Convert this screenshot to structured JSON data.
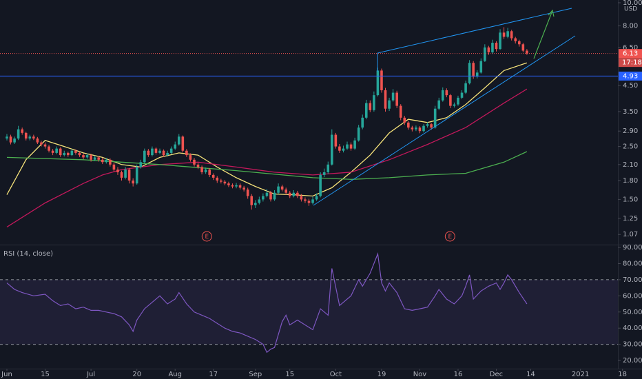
{
  "chart_data": [
    {
      "type": "candlestick",
      "log_scale": true,
      "currency": "USD",
      "up_color": "#26a69a",
      "down_color": "#ef5350",
      "xlim": [
        -1.8,
        159.8
      ],
      "ylim": [
        0.97,
        10.27
      ],
      "yticks": [
        {
          "value": 1.07,
          "label": "1.07"
        },
        {
          "value": 1.25,
          "label": "1.25"
        },
        {
          "value": 1.5,
          "label": "1.50"
        },
        {
          "value": 1.8,
          "label": "1.80"
        },
        {
          "value": 2.1,
          "label": "2.10"
        },
        {
          "value": 2.5,
          "label": "2.50"
        },
        {
          "value": 2.9,
          "label": "2.90"
        },
        {
          "value": 3.5,
          "label": "3.50"
        },
        {
          "value": 4.5,
          "label": "4.50"
        },
        {
          "value": 6.5,
          "label": "6.50"
        },
        {
          "value": 8,
          "label": "8.00"
        },
        {
          "value": 10,
          "label": "10.00"
        }
      ],
      "candles": [
        [
          2.7,
          2.82,
          2.65,
          2.75
        ],
        [
          2.75,
          2.8,
          2.55,
          2.6
        ],
        [
          2.6,
          2.75,
          2.56,
          2.7
        ],
        [
          2.7,
          3.05,
          2.66,
          2.95
        ],
        [
          2.95,
          3.0,
          2.8,
          2.85
        ],
        [
          2.85,
          2.88,
          2.65,
          2.7
        ],
        [
          2.7,
          2.8,
          2.65,
          2.75
        ],
        [
          2.75,
          2.8,
          2.66,
          2.7
        ],
        [
          2.7,
          2.74,
          2.56,
          2.6
        ],
        [
          2.6,
          2.64,
          2.5,
          2.55
        ],
        [
          2.55,
          2.6,
          2.45,
          2.5
        ],
        [
          2.5,
          2.54,
          2.36,
          2.4
        ],
        [
          2.4,
          2.44,
          2.3,
          2.35
        ],
        [
          2.35,
          2.5,
          2.32,
          2.45
        ],
        [
          2.45,
          2.48,
          2.26,
          2.3
        ],
        [
          2.3,
          2.4,
          2.27,
          2.35
        ],
        [
          2.35,
          2.38,
          2.26,
          2.3
        ],
        [
          2.3,
          2.44,
          2.28,
          2.4
        ],
        [
          2.4,
          2.43,
          2.31,
          2.35
        ],
        [
          2.35,
          2.38,
          2.26,
          2.3
        ],
        [
          2.3,
          2.34,
          2.21,
          2.25
        ],
        [
          2.25,
          2.34,
          2.22,
          2.3
        ],
        [
          2.3,
          2.33,
          2.16,
          2.2
        ],
        [
          2.2,
          2.29,
          2.17,
          2.25
        ],
        [
          2.25,
          2.28,
          2.16,
          2.2
        ],
        [
          2.2,
          2.24,
          2.11,
          2.15
        ],
        [
          2.15,
          2.24,
          2.12,
          2.2
        ],
        [
          2.2,
          2.23,
          2.06,
          2.1
        ],
        [
          2.1,
          2.14,
          1.96,
          2.0
        ],
        [
          2.0,
          2.05,
          1.9,
          1.95
        ],
        [
          1.95,
          1.98,
          1.8,
          1.85
        ],
        [
          1.85,
          2.05,
          1.82,
          2.0
        ],
        [
          2.0,
          2.03,
          1.75,
          1.8
        ],
        [
          1.8,
          1.84,
          1.7,
          1.75
        ],
        [
          1.75,
          2.1,
          1.73,
          2.05
        ],
        [
          2.05,
          2.2,
          2.02,
          2.15
        ],
        [
          2.15,
          2.45,
          2.12,
          2.4
        ],
        [
          2.4,
          2.44,
          2.26,
          2.3
        ],
        [
          2.3,
          2.5,
          2.27,
          2.45
        ],
        [
          2.45,
          2.48,
          2.31,
          2.35
        ],
        [
          2.35,
          2.45,
          2.32,
          2.4
        ],
        [
          2.4,
          2.43,
          2.26,
          2.3
        ],
        [
          2.3,
          2.4,
          2.27,
          2.35
        ],
        [
          2.35,
          2.5,
          2.32,
          2.45
        ],
        [
          2.45,
          2.62,
          2.42,
          2.55
        ],
        [
          2.55,
          2.82,
          2.52,
          2.75
        ],
        [
          2.75,
          2.78,
          2.36,
          2.4
        ],
        [
          2.4,
          2.44,
          2.26,
          2.3
        ],
        [
          2.3,
          2.34,
          2.16,
          2.2
        ],
        [
          2.2,
          2.24,
          2.06,
          2.1
        ],
        [
          2.1,
          2.14,
          2.01,
          2.05
        ],
        [
          2.05,
          2.08,
          1.91,
          1.95
        ],
        [
          1.95,
          2.04,
          1.92,
          2.0
        ],
        [
          2.0,
          2.03,
          1.86,
          1.9
        ],
        [
          1.9,
          1.93,
          1.81,
          1.85
        ],
        [
          1.85,
          1.88,
          1.76,
          1.8
        ],
        [
          1.8,
          1.83,
          1.75,
          1.78
        ],
        [
          1.78,
          1.81,
          1.72,
          1.75
        ],
        [
          1.75,
          1.78,
          1.69,
          1.72
        ],
        [
          1.72,
          1.75,
          1.67,
          1.7
        ],
        [
          1.7,
          1.76,
          1.67,
          1.72
        ],
        [
          1.72,
          1.75,
          1.65,
          1.68
        ],
        [
          1.68,
          1.71,
          1.62,
          1.65
        ],
        [
          1.65,
          1.68,
          1.51,
          1.55
        ],
        [
          1.55,
          1.58,
          1.36,
          1.42
        ],
        [
          1.42,
          1.49,
          1.38,
          1.45
        ],
        [
          1.45,
          1.54,
          1.43,
          1.5
        ],
        [
          1.5,
          1.59,
          1.47,
          1.55
        ],
        [
          1.55,
          1.66,
          1.53,
          1.6
        ],
        [
          1.6,
          1.63,
          1.47,
          1.5
        ],
        [
          1.5,
          1.64,
          1.48,
          1.6
        ],
        [
          1.6,
          1.75,
          1.58,
          1.7
        ],
        [
          1.7,
          1.73,
          1.62,
          1.65
        ],
        [
          1.65,
          1.68,
          1.57,
          1.6
        ],
        [
          1.6,
          1.63,
          1.52,
          1.55
        ],
        [
          1.55,
          1.64,
          1.53,
          1.6
        ],
        [
          1.6,
          1.63,
          1.52,
          1.55
        ],
        [
          1.55,
          1.58,
          1.47,
          1.5
        ],
        [
          1.5,
          1.53,
          1.45,
          1.48
        ],
        [
          1.48,
          1.51,
          1.41,
          1.45
        ],
        [
          1.45,
          1.54,
          1.43,
          1.5
        ],
        [
          1.5,
          1.59,
          1.48,
          1.55
        ],
        [
          1.55,
          1.95,
          1.53,
          1.9
        ],
        [
          1.9,
          2.02,
          1.86,
          1.95
        ],
        [
          1.95,
          2.16,
          1.92,
          2.1
        ],
        [
          2.1,
          2.95,
          2.08,
          2.8
        ],
        [
          2.8,
          2.85,
          2.45,
          2.5
        ],
        [
          2.5,
          2.56,
          2.35,
          2.4
        ],
        [
          2.4,
          2.52,
          2.36,
          2.45
        ],
        [
          2.45,
          2.62,
          2.42,
          2.55
        ],
        [
          2.55,
          2.6,
          2.4,
          2.45
        ],
        [
          2.45,
          2.72,
          2.42,
          2.65
        ],
        [
          2.65,
          3.08,
          2.62,
          3.0
        ],
        [
          3.0,
          3.4,
          2.95,
          3.3
        ],
        [
          3.3,
          3.92,
          3.25,
          3.8
        ],
        [
          3.8,
          3.9,
          3.48,
          3.55
        ],
        [
          3.55,
          4.25,
          3.5,
          4.1
        ],
        [
          4.1,
          5.35,
          4.05,
          5.2
        ],
        [
          5.2,
          5.3,
          4.2,
          4.3
        ],
        [
          4.3,
          4.4,
          3.5,
          3.6
        ],
        [
          3.6,
          4.0,
          3.52,
          3.9
        ],
        [
          3.9,
          4.35,
          3.85,
          4.2
        ],
        [
          4.2,
          4.28,
          3.62,
          3.7
        ],
        [
          3.7,
          3.76,
          3.22,
          3.3
        ],
        [
          3.3,
          3.36,
          3.08,
          3.15
        ],
        [
          3.15,
          3.2,
          2.94,
          3.0
        ],
        [
          3.0,
          3.05,
          2.89,
          2.95
        ],
        [
          2.95,
          3.06,
          2.9,
          3.0
        ],
        [
          3.0,
          3.04,
          2.84,
          2.9
        ],
        [
          2.9,
          3.1,
          2.86,
          3.05
        ],
        [
          3.05,
          3.16,
          3.0,
          3.1
        ],
        [
          3.1,
          3.14,
          2.94,
          3.0
        ],
        [
          3.0,
          3.7,
          2.97,
          3.6
        ],
        [
          3.6,
          4.0,
          3.55,
          3.9
        ],
        [
          3.9,
          4.42,
          3.85,
          4.3
        ],
        [
          4.3,
          4.38,
          4.02,
          4.1
        ],
        [
          4.1,
          4.15,
          3.62,
          3.7
        ],
        [
          3.7,
          3.82,
          3.64,
          3.75
        ],
        [
          3.75,
          4.08,
          3.7,
          4.0
        ],
        [
          4.0,
          4.3,
          3.95,
          4.2
        ],
        [
          4.2,
          4.72,
          4.15,
          4.6
        ],
        [
          4.6,
          5.75,
          4.55,
          5.6
        ],
        [
          5.6,
          5.7,
          4.8,
          4.9
        ],
        [
          4.9,
          5.22,
          4.82,
          5.1
        ],
        [
          5.1,
          5.85,
          5.05,
          5.7
        ],
        [
          5.7,
          6.7,
          5.65,
          6.5
        ],
        [
          6.5,
          6.6,
          6.05,
          6.2
        ],
        [
          6.2,
          7.0,
          6.1,
          6.8
        ],
        [
          6.8,
          6.9,
          6.25,
          6.4
        ],
        [
          6.4,
          7.75,
          6.35,
          7.5
        ],
        [
          7.5,
          7.9,
          7.05,
          7.2
        ],
        [
          7.2,
          7.85,
          7.1,
          7.6
        ],
        [
          7.6,
          7.7,
          6.95,
          7.1
        ],
        [
          7.1,
          7.2,
          6.75,
          6.9
        ],
        [
          6.9,
          7.0,
          6.55,
          6.7
        ],
        [
          6.7,
          6.8,
          6.2,
          6.3
        ],
        [
          6.3,
          6.4,
          6.05,
          6.13
        ]
      ],
      "moving_averages": [
        {
          "color": "#f5e27a",
          "x": [
            0,
            5,
            10,
            15,
            20,
            25,
            30,
            35,
            40,
            45,
            50,
            55,
            60,
            65,
            70,
            75,
            80,
            85,
            90,
            95,
            100,
            105,
            110,
            115,
            120,
            125,
            130,
            136
          ],
          "values": [
            1.57,
            2.2,
            2.65,
            2.5,
            2.35,
            2.25,
            2.1,
            2.05,
            2.25,
            2.35,
            2.3,
            2.05,
            1.85,
            1.7,
            1.58,
            1.57,
            1.55,
            1.68,
            1.95,
            2.3,
            2.85,
            3.25,
            3.15,
            3.3,
            3.75,
            4.4,
            5.2,
            5.6
          ]
        },
        {
          "color": "#c2185b",
          "x": [
            0,
            10,
            20,
            25,
            30,
            40,
            50,
            60,
            70,
            80,
            90,
            100,
            110,
            120,
            130,
            136
          ],
          "values": [
            1.15,
            1.45,
            1.75,
            1.9,
            2.0,
            2.1,
            2.15,
            2.05,
            1.95,
            1.9,
            1.95,
            2.2,
            2.55,
            3.0,
            3.8,
            4.35
          ]
        },
        {
          "color": "#4caf50",
          "x": [
            0,
            20,
            40,
            60,
            80,
            90,
            100,
            110,
            120,
            130,
            136
          ],
          "values": [
            2.25,
            2.2,
            2.1,
            1.98,
            1.85,
            1.82,
            1.85,
            1.9,
            1.93,
            2.15,
            2.38
          ]
        }
      ],
      "price_lines": [
        {
          "value": 6.13,
          "color": "#ef5350",
          "style": "dotted",
          "countdown": "17:18"
        },
        {
          "value": 4.93,
          "color": "#2962ff",
          "style": "solid"
        }
      ],
      "earnings_markers": [
        {
          "label": "E",
          "x": 52.3
        },
        {
          "label": "E",
          "x": 115.9
        }
      ]
    },
    {
      "type": "line",
      "title": "RSI (14, close)",
      "color": "#7e57c2",
      "xlim": [
        -1.8,
        159.8
      ],
      "ylim": [
        14.9,
        91.3
      ],
      "bands": [
        70,
        30
      ],
      "yticks": [
        {
          "value": 20,
          "label": "20.00"
        },
        {
          "value": 30,
          "label": "30.00"
        },
        {
          "value": 40,
          "label": "40.00"
        },
        {
          "value": 50,
          "label": "50.00"
        },
        {
          "value": 60,
          "label": "60.00"
        },
        {
          "value": 70,
          "label": "70.00"
        },
        {
          "value": 80,
          "label": "80.00"
        },
        {
          "value": 90,
          "label": "90.00"
        }
      ],
      "xticks": [
        {
          "value": 0,
          "label": "Jun"
        },
        {
          "value": 10,
          "label": "15"
        },
        {
          "value": 22,
          "label": "Jul"
        },
        {
          "value": 34,
          "label": "20"
        },
        {
          "value": 44,
          "label": "Aug"
        },
        {
          "value": 54,
          "label": "17"
        },
        {
          "value": 65,
          "label": "Sep"
        },
        {
          "value": 74,
          "label": "15"
        },
        {
          "value": 86,
          "label": "Oct"
        },
        {
          "value": 98,
          "label": "19"
        },
        {
          "value": 108,
          "label": "Nov"
        },
        {
          "value": 118,
          "label": "16"
        },
        {
          "value": 128,
          "label": "Dec"
        },
        {
          "value": 137,
          "label": "14"
        },
        {
          "value": 150,
          "label": "2021"
        },
        {
          "value": 161,
          "label": "18"
        }
      ],
      "x": [
        0,
        2,
        4,
        7,
        10,
        12,
        14,
        16,
        18,
        20,
        22,
        24,
        26,
        28,
        30,
        32,
        33,
        34,
        36,
        38,
        40,
        42,
        44,
        45,
        47,
        49,
        51,
        53,
        55,
        57,
        59,
        61,
        63,
        65,
        67,
        68,
        69,
        70,
        72,
        73,
        74,
        76,
        78,
        80,
        82,
        84,
        85,
        87,
        89,
        90,
        92,
        93,
        95,
        97,
        98,
        99,
        100,
        102,
        104,
        106,
        108,
        110,
        112,
        113,
        115,
        117,
        119,
        120,
        121,
        122,
        124,
        126,
        128,
        129,
        130,
        131,
        132,
        134,
        136
      ],
      "values": [
        68,
        64,
        62,
        60,
        61,
        57,
        54,
        55,
        52,
        53,
        51,
        51,
        50,
        49,
        47,
        42,
        38,
        45,
        52,
        56,
        60,
        55,
        58,
        62,
        55,
        50,
        48,
        46,
        43,
        40,
        38,
        37,
        35,
        33,
        30,
        25,
        27,
        28,
        44,
        48,
        42,
        45,
        42,
        39,
        52,
        48,
        77,
        54,
        58,
        60,
        70,
        66,
        74,
        86,
        68,
        63,
        68,
        62,
        52,
        51,
        52,
        53,
        60,
        64,
        58,
        55,
        60,
        66,
        73,
        58,
        63,
        66,
        68,
        64,
        68,
        73,
        70,
        62,
        55
      ]
    }
  ]
}
